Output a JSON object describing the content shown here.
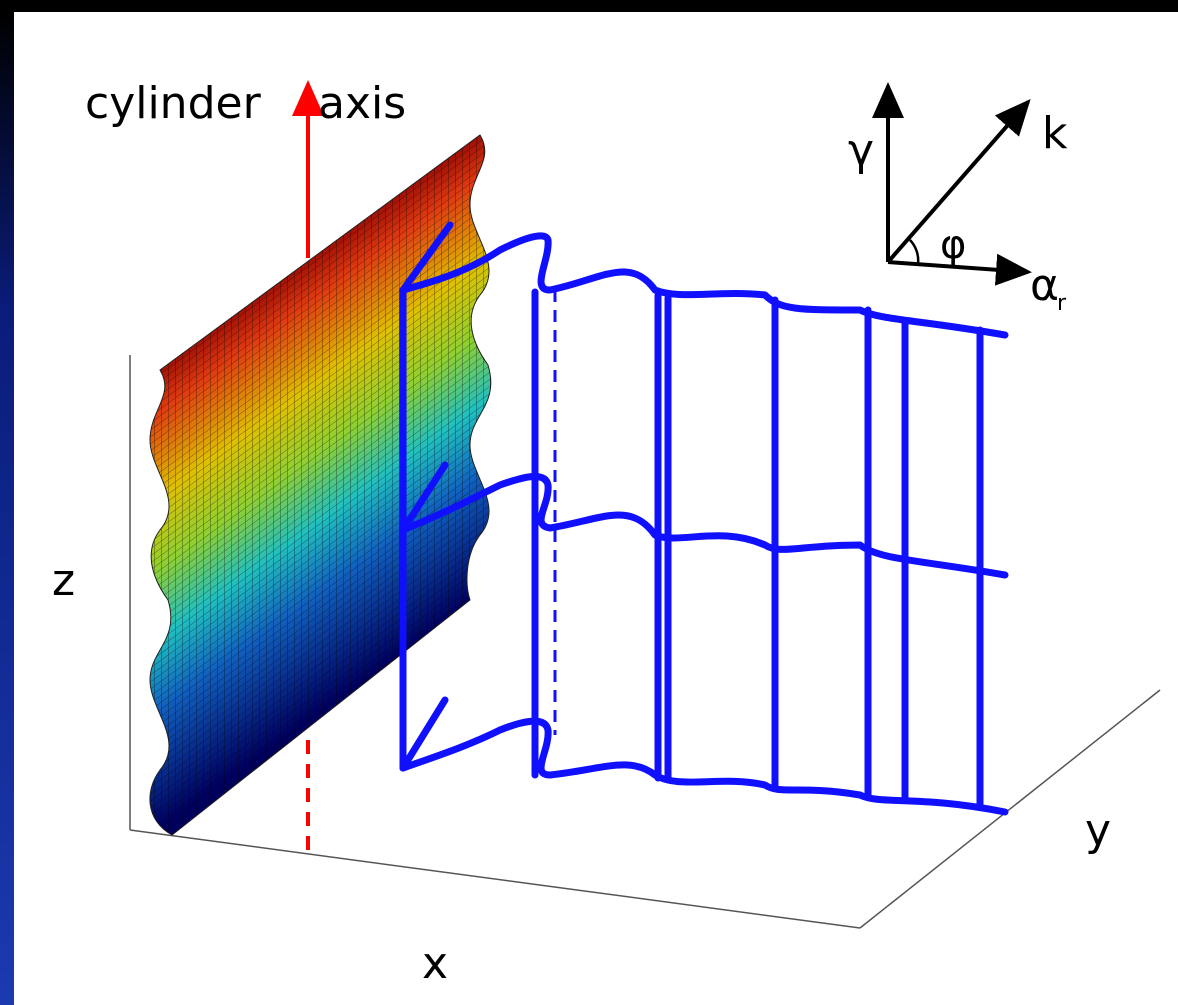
{
  "labels": {
    "cylinder": "cylinder",
    "axis": "axis",
    "gamma": "γ",
    "k": "k",
    "phi": "φ",
    "alpha": "α",
    "alpha_sub": "r",
    "z": "z",
    "x": "x",
    "y": "y"
  }
}
